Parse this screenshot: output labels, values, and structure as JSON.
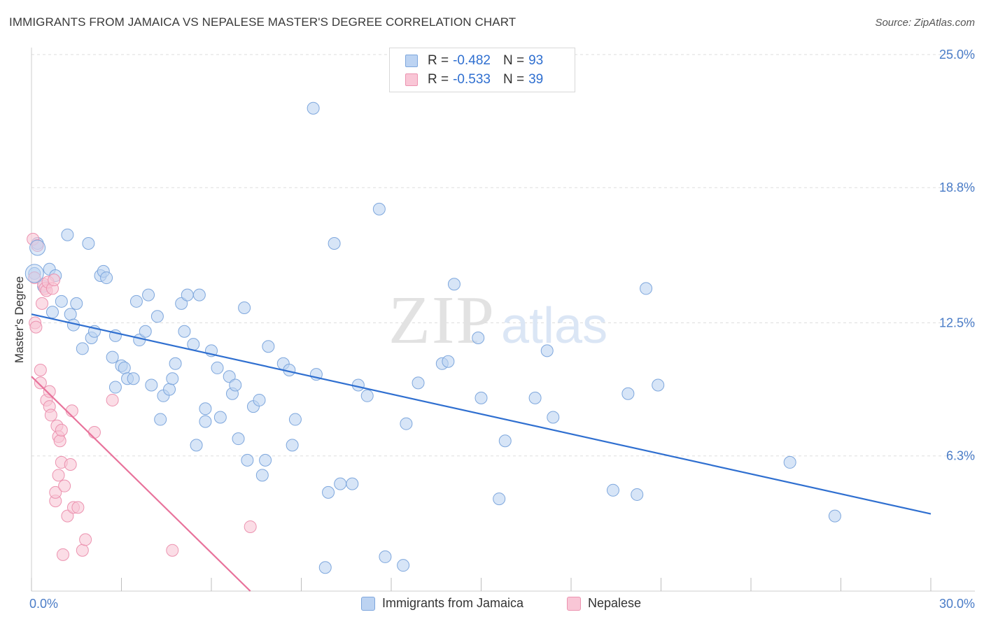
{
  "title": "IMMIGRANTS FROM JAMAICA VS NEPALESE MASTER'S DEGREE CORRELATION CHART",
  "source": "Source: ZipAtlas.com",
  "watermark": {
    "zip": "ZIP",
    "atlas": "atlas"
  },
  "legend": {
    "rows": [
      {
        "r_label": "R =",
        "r_value": "-0.482",
        "n_label": "N =",
        "n_value": "93"
      },
      {
        "r_label": "R =",
        "r_value": "-0.533",
        "n_label": "N =",
        "n_value": "39"
      }
    ]
  },
  "bottom_legend": {
    "series1": "Immigrants from Jamaica",
    "series2": "Nepalese"
  },
  "colors": {
    "blue_fill": "#bcd3f2",
    "blue_stroke": "#7ea7dd",
    "blue_line": "#2f6fd0",
    "pink_fill": "#f9c6d6",
    "pink_stroke": "#ec93b0",
    "pink_line": "#e8729b",
    "grid": "#dddddd",
    "tick_text": "#4a7cc7"
  },
  "chart_data": {
    "type": "scatter",
    "title": "IMMIGRANTS FROM JAMAICA VS NEPALESE MASTER'S DEGREE CORRELATION CHART",
    "xlabel": "",
    "ylabel": "Master's Degree",
    "xlim": [
      0,
      30
    ],
    "ylim": [
      0,
      25
    ],
    "x_tick_labels": [
      "0.0%",
      "30.0%"
    ],
    "y_ticks": [
      6.3,
      12.5,
      18.8,
      25.0
    ],
    "y_tick_labels": [
      "6.3%",
      "12.5%",
      "18.8%",
      "25.0%"
    ],
    "grid": true,
    "legend_position": "top-center",
    "series": [
      {
        "name": "Immigrants from Jamaica",
        "r": -0.482,
        "n": 93,
        "trend": {
          "x": [
            0,
            30
          ],
          "y": [
            12.9,
            3.6
          ]
        },
        "points": [
          [
            0.1,
            14.8
          ],
          [
            0.2,
            16.2
          ],
          [
            0.4,
            14.2
          ],
          [
            0.6,
            15.0
          ],
          [
            0.8,
            14.7
          ],
          [
            0.7,
            13.0
          ],
          [
            1.2,
            16.6
          ],
          [
            1.0,
            13.5
          ],
          [
            1.3,
            12.9
          ],
          [
            1.4,
            12.4
          ],
          [
            1.5,
            13.4
          ],
          [
            1.7,
            11.3
          ],
          [
            1.9,
            16.2
          ],
          [
            2.0,
            11.8
          ],
          [
            2.1,
            12.1
          ],
          [
            2.3,
            14.7
          ],
          [
            2.4,
            14.9
          ],
          [
            2.5,
            14.6
          ],
          [
            2.7,
            10.9
          ],
          [
            2.8,
            11.9
          ],
          [
            2.8,
            9.5
          ],
          [
            3.0,
            10.5
          ],
          [
            3.1,
            10.4
          ],
          [
            3.2,
            9.9
          ],
          [
            3.4,
            9.9
          ],
          [
            3.5,
            13.5
          ],
          [
            3.6,
            11.7
          ],
          [
            3.8,
            12.1
          ],
          [
            3.9,
            13.8
          ],
          [
            4.0,
            9.6
          ],
          [
            4.2,
            12.8
          ],
          [
            4.3,
            8.0
          ],
          [
            4.4,
            9.1
          ],
          [
            4.6,
            9.4
          ],
          [
            4.7,
            9.9
          ],
          [
            4.8,
            10.6
          ],
          [
            5.0,
            13.4
          ],
          [
            5.1,
            12.1
          ],
          [
            5.2,
            13.8
          ],
          [
            5.4,
            11.5
          ],
          [
            5.5,
            6.8
          ],
          [
            5.6,
            13.8
          ],
          [
            5.8,
            7.9
          ],
          [
            5.8,
            8.5
          ],
          [
            6.0,
            11.2
          ],
          [
            6.2,
            10.4
          ],
          [
            6.3,
            8.1
          ],
          [
            6.6,
            10.0
          ],
          [
            6.7,
            9.2
          ],
          [
            6.8,
            9.6
          ],
          [
            6.9,
            7.1
          ],
          [
            7.1,
            13.2
          ],
          [
            7.2,
            6.1
          ],
          [
            7.4,
            8.6
          ],
          [
            7.6,
            8.9
          ],
          [
            7.7,
            5.4
          ],
          [
            7.8,
            6.1
          ],
          [
            7.9,
            11.4
          ],
          [
            8.4,
            10.6
          ],
          [
            8.6,
            10.3
          ],
          [
            8.7,
            6.8
          ],
          [
            8.8,
            8.0
          ],
          [
            9.5,
            10.1
          ],
          [
            9.4,
            22.5
          ],
          [
            9.8,
            1.1
          ],
          [
            9.9,
            4.6
          ],
          [
            10.1,
            16.2
          ],
          [
            10.3,
            5.0
          ],
          [
            10.7,
            5.0
          ],
          [
            10.9,
            9.6
          ],
          [
            11.2,
            9.1
          ],
          [
            11.6,
            17.8
          ],
          [
            11.8,
            1.6
          ],
          [
            12.4,
            1.2
          ],
          [
            12.5,
            7.8
          ],
          [
            12.9,
            9.7
          ],
          [
            13.7,
            10.6
          ],
          [
            13.9,
            10.7
          ],
          [
            14.1,
            14.3
          ],
          [
            14.9,
            11.8
          ],
          [
            15.0,
            9.0
          ],
          [
            15.6,
            4.3
          ],
          [
            15.8,
            7.0
          ],
          [
            16.8,
            9.0
          ],
          [
            17.2,
            11.2
          ],
          [
            17.4,
            8.1
          ],
          [
            19.4,
            4.7
          ],
          [
            19.9,
            9.2
          ],
          [
            20.2,
            4.5
          ],
          [
            20.5,
            14.1
          ],
          [
            20.9,
            9.6
          ],
          [
            25.3,
            6.0
          ],
          [
            26.8,
            3.5
          ]
        ]
      },
      {
        "name": "Nepalese",
        "r": -0.533,
        "n": 39,
        "trend": {
          "x": [
            0,
            7.3
          ],
          "y": [
            10.0,
            0
          ]
        },
        "points": [
          [
            0.05,
            16.4
          ],
          [
            0.1,
            14.6
          ],
          [
            0.12,
            12.5
          ],
          [
            0.15,
            12.3
          ],
          [
            0.2,
            16.1
          ],
          [
            0.3,
            10.3
          ],
          [
            0.3,
            9.7
          ],
          [
            0.35,
            13.4
          ],
          [
            0.4,
            14.3
          ],
          [
            0.45,
            14.1
          ],
          [
            0.5,
            8.9
          ],
          [
            0.5,
            14.0
          ],
          [
            0.55,
            14.4
          ],
          [
            0.6,
            8.6
          ],
          [
            0.6,
            9.3
          ],
          [
            0.65,
            8.2
          ],
          [
            0.7,
            14.1
          ],
          [
            0.75,
            14.5
          ],
          [
            0.8,
            4.2
          ],
          [
            0.8,
            4.6
          ],
          [
            0.85,
            7.7
          ],
          [
            0.9,
            5.4
          ],
          [
            0.9,
            7.2
          ],
          [
            0.95,
            7.0
          ],
          [
            1.0,
            7.5
          ],
          [
            1.0,
            6.0
          ],
          [
            1.05,
            1.7
          ],
          [
            1.1,
            4.9
          ],
          [
            1.2,
            3.5
          ],
          [
            1.3,
            5.9
          ],
          [
            1.35,
            8.4
          ],
          [
            1.4,
            3.9
          ],
          [
            1.55,
            3.9
          ],
          [
            1.7,
            1.9
          ],
          [
            1.8,
            2.4
          ],
          [
            2.1,
            7.4
          ],
          [
            2.7,
            8.9
          ],
          [
            4.7,
            1.9
          ],
          [
            7.3,
            3.0
          ]
        ]
      }
    ]
  }
}
